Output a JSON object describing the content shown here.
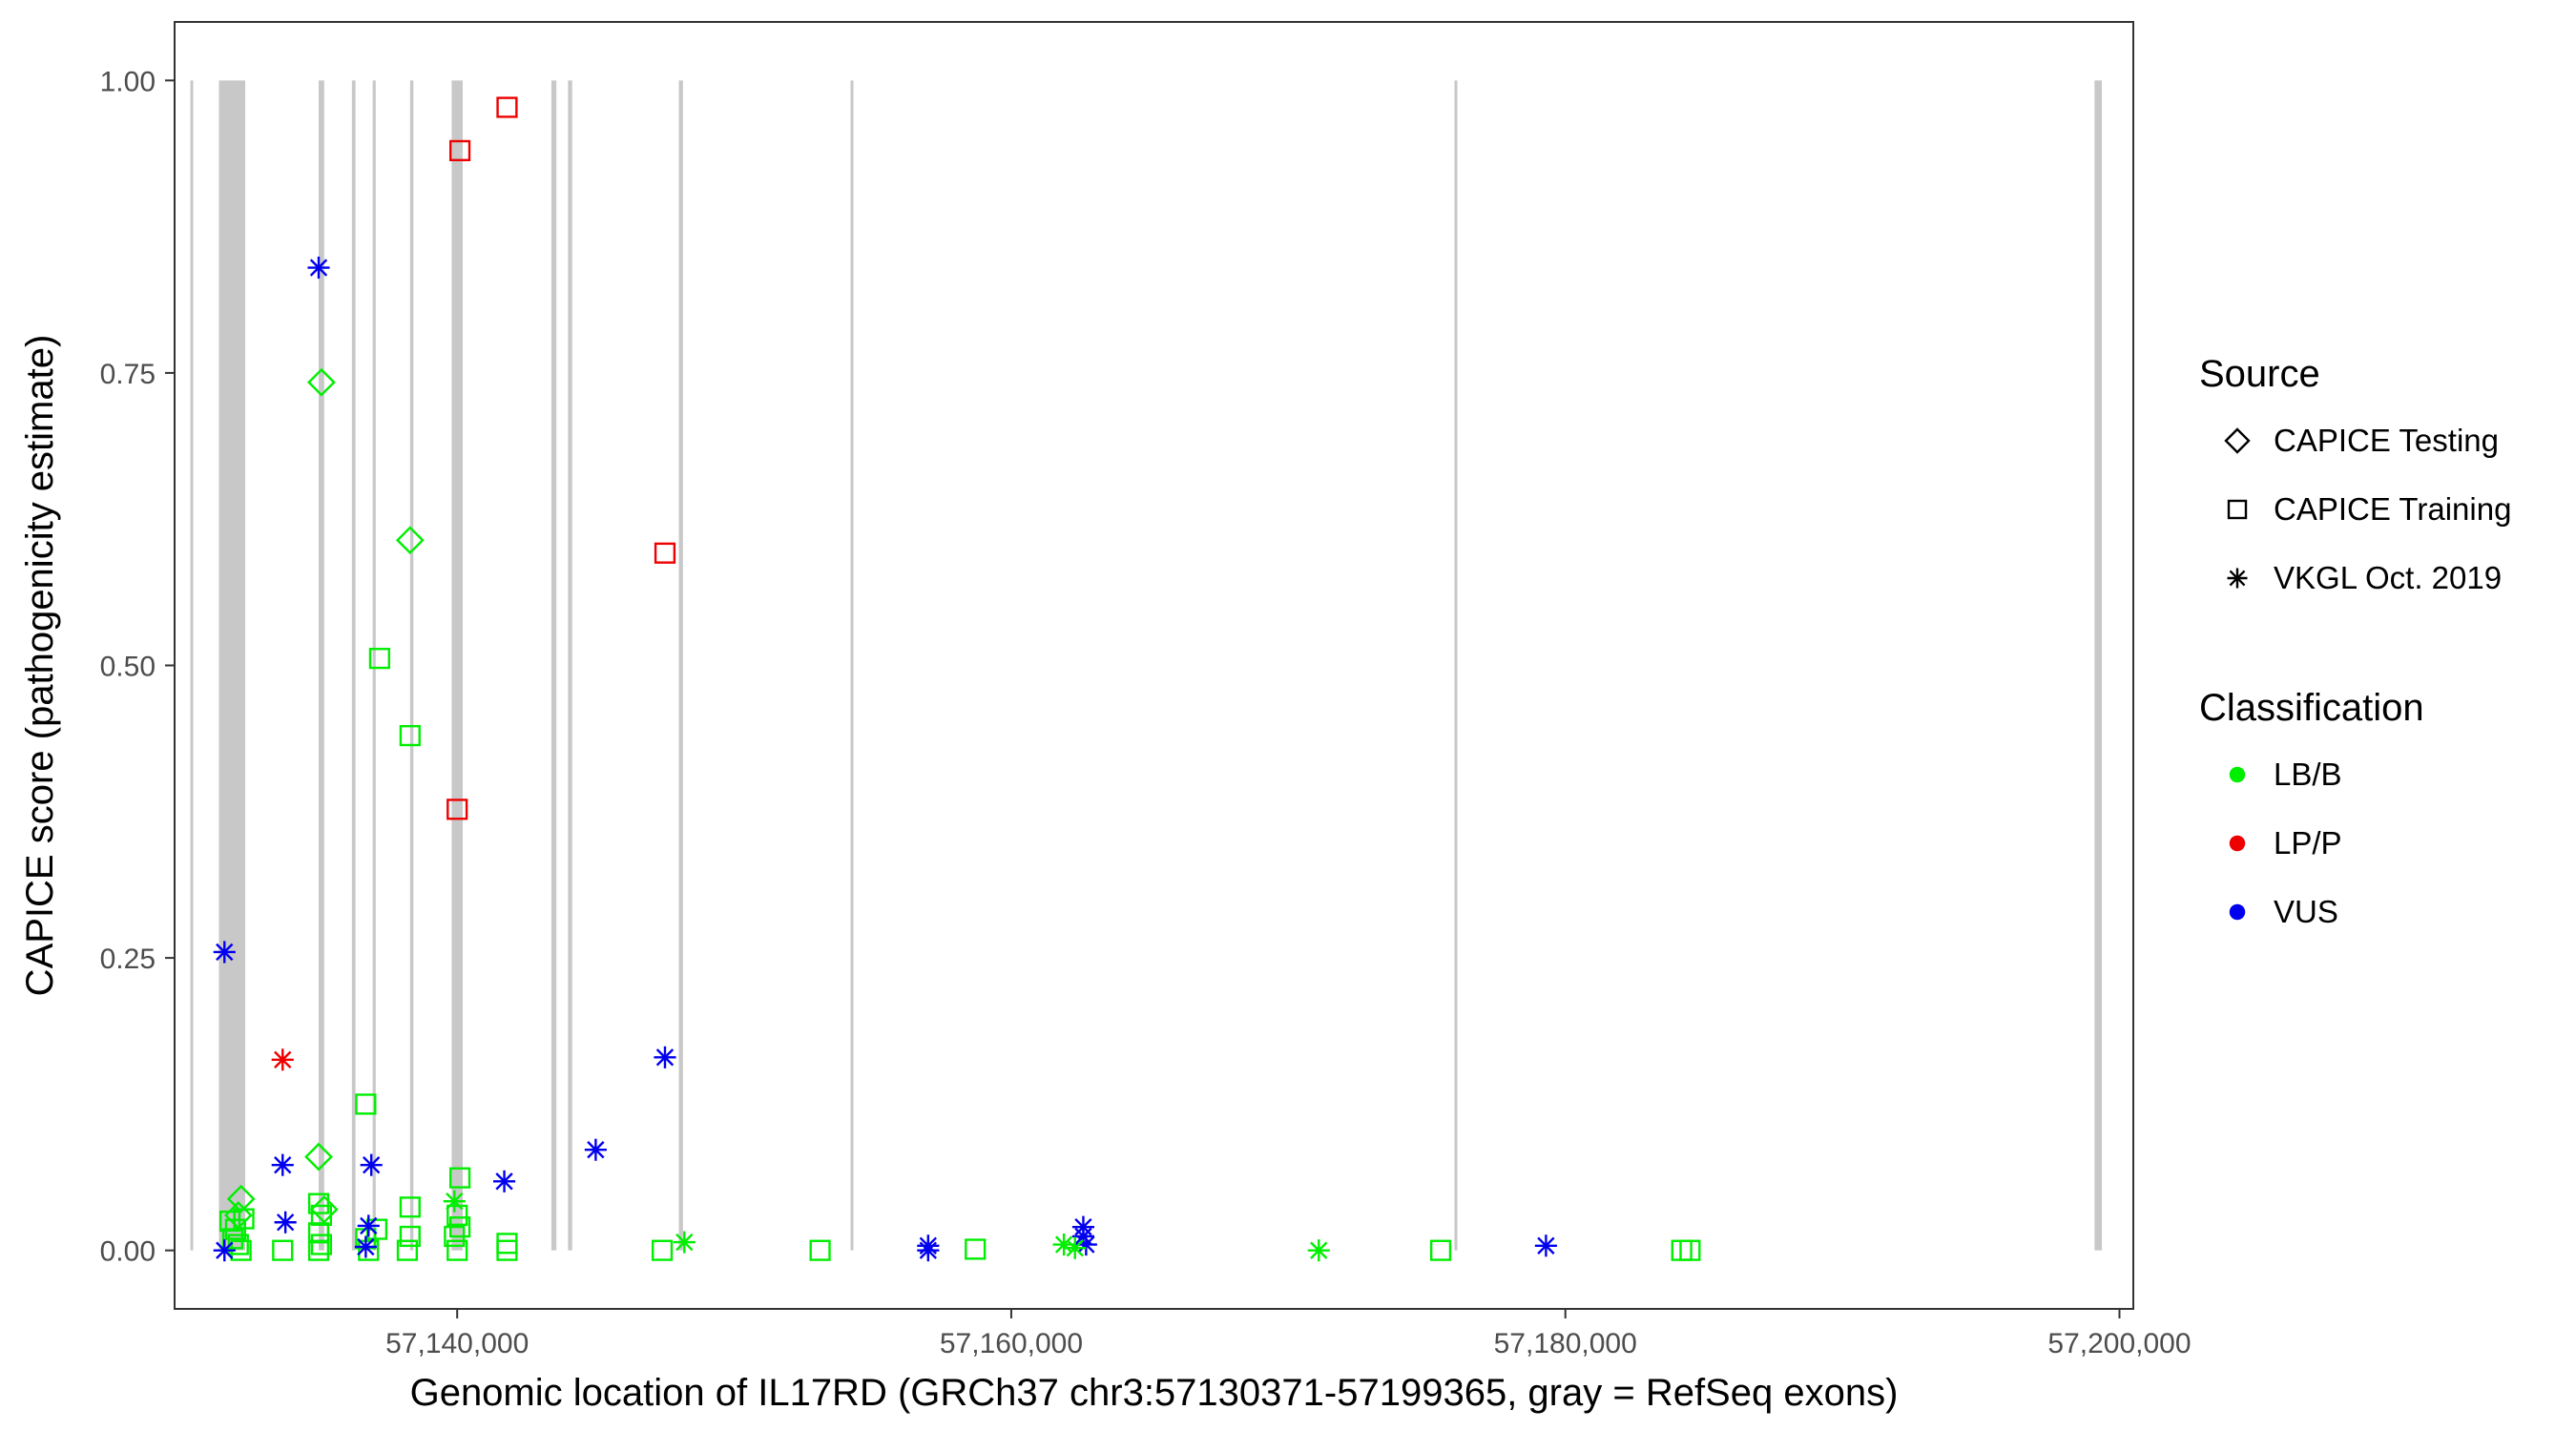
{
  "chart_data": {
    "type": "scatter",
    "title": "",
    "xlabel": "Genomic location of IL17RD (GRCh37 chr3:57130371-57199365, gray = RefSeq exons)",
    "ylabel": "CAPICE score (pathogenicity estimate)",
    "xlim": [
      57129800,
      57200500
    ],
    "ylim": [
      -0.05,
      1.05
    ],
    "x_ticks": [
      57140000,
      57160000,
      57180000,
      57200000
    ],
    "x_tick_labels": [
      "57,140,000",
      "57,160,000",
      "57,180,000",
      "57,200,000"
    ],
    "y_ticks": [
      0,
      0.25,
      0.5,
      0.75,
      1.0
    ],
    "y_tick_labels": [
      "0.00",
      "0.25",
      "0.50",
      "0.75",
      "1.00"
    ],
    "grid": false,
    "legend_position": "right",
    "exons": [
      {
        "start": 57130371,
        "end": 57130471
      },
      {
        "start": 57131400,
        "end": 57132350
      },
      {
        "start": 57135000,
        "end": 57135200
      },
      {
        "start": 57136200,
        "end": 57136330
      },
      {
        "start": 57136950,
        "end": 57137060
      },
      {
        "start": 57138300,
        "end": 57138420
      },
      {
        "start": 57139800,
        "end": 57140200
      },
      {
        "start": 57143400,
        "end": 57143580
      },
      {
        "start": 57144000,
        "end": 57144150
      },
      {
        "start": 57148000,
        "end": 57148150
      },
      {
        "start": 57154200,
        "end": 57154300
      },
      {
        "start": 57176000,
        "end": 57176100
      },
      {
        "start": 57199100,
        "end": 57199365
      }
    ],
    "legends": [
      {
        "title": "Source",
        "entries": [
          {
            "label": "CAPICE Testing",
            "shape": "diamond"
          },
          {
            "label": "CAPICE Training",
            "shape": "square"
          },
          {
            "label": "VKGL Oct. 2019",
            "shape": "asterisk"
          }
        ]
      },
      {
        "title": "Classification",
        "entries": [
          {
            "label": "LB/B",
            "color": "#00ee00"
          },
          {
            "label": "LP/P",
            "color": "#ee0000"
          },
          {
            "label": "VUS",
            "color": "#0000ee"
          }
        ]
      }
    ],
    "series": [
      {
        "name": "CAPICE Testing",
        "shape": "diamond",
        "points": [
          {
            "x": 57132200,
            "y": 0.044,
            "class": "LB/B"
          },
          {
            "x": 57132100,
            "y": 0.03,
            "class": "LB/B"
          },
          {
            "x": 57135100,
            "y": 0.742,
            "class": "LB/B"
          },
          {
            "x": 57135000,
            "y": 0.08,
            "class": "LB/B"
          },
          {
            "x": 57135200,
            "y": 0.035,
            "class": "LB/B"
          },
          {
            "x": 57138300,
            "y": 0.607,
            "class": "LB/B"
          }
        ]
      },
      {
        "name": "CAPICE Training",
        "shape": "square",
        "points": [
          {
            "x": 57141800,
            "y": 0.977,
            "class": "LP/P"
          },
          {
            "x": 57140100,
            "y": 0.94,
            "class": "LP/P"
          },
          {
            "x": 57147500,
            "y": 0.596,
            "class": "LP/P"
          },
          {
            "x": 57140000,
            "y": 0.377,
            "class": "LP/P"
          },
          {
            "x": 57137200,
            "y": 0.506,
            "class": "LB/B"
          },
          {
            "x": 57138300,
            "y": 0.44,
            "class": "LB/B"
          },
          {
            "x": 57136700,
            "y": 0.125,
            "class": "LB/B"
          },
          {
            "x": 57140100,
            "y": 0.062,
            "class": "LB/B"
          },
          {
            "x": 57138300,
            "y": 0.037,
            "class": "LB/B"
          },
          {
            "x": 57140000,
            "y": 0.03,
            "class": "LB/B"
          },
          {
            "x": 57140100,
            "y": 0.02,
            "class": "LB/B"
          },
          {
            "x": 57135000,
            "y": 0.04,
            "class": "LB/B"
          },
          {
            "x": 57135100,
            "y": 0.03,
            "class": "LB/B"
          },
          {
            "x": 57135000,
            "y": 0.015,
            "class": "LB/B"
          },
          {
            "x": 57135100,
            "y": 0.005,
            "class": "LB/B"
          },
          {
            "x": 57135000,
            "y": 0.0,
            "class": "LB/B"
          },
          {
            "x": 57131800,
            "y": 0.025,
            "class": "LB/B"
          },
          {
            "x": 57132000,
            "y": 0.018,
            "class": "LB/B"
          },
          {
            "x": 57131900,
            "y": 0.01,
            "class": "LB/B"
          },
          {
            "x": 57132100,
            "y": 0.005,
            "class": "LB/B"
          },
          {
            "x": 57132300,
            "y": 0.027,
            "class": "LB/B"
          },
          {
            "x": 57132200,
            "y": 0.0,
            "class": "LB/B"
          },
          {
            "x": 57133700,
            "y": 0.0,
            "class": "LB/B"
          },
          {
            "x": 57136700,
            "y": 0.01,
            "class": "LB/B"
          },
          {
            "x": 57137100,
            "y": 0.018,
            "class": "LB/B"
          },
          {
            "x": 57136800,
            "y": 0.0,
            "class": "LB/B"
          },
          {
            "x": 57138300,
            "y": 0.012,
            "class": "LB/B"
          },
          {
            "x": 57138200,
            "y": 0.0,
            "class": "LB/B"
          },
          {
            "x": 57139900,
            "y": 0.012,
            "class": "LB/B"
          },
          {
            "x": 57140000,
            "y": 0.0,
            "class": "LB/B"
          },
          {
            "x": 57141800,
            "y": 0.006,
            "class": "LB/B"
          },
          {
            "x": 57141800,
            "y": 0.0,
            "class": "LB/B"
          },
          {
            "x": 57147400,
            "y": 0.0,
            "class": "LB/B"
          },
          {
            "x": 57153100,
            "y": 0.0,
            "class": "LB/B"
          },
          {
            "x": 57158700,
            "y": 0.001,
            "class": "LB/B"
          },
          {
            "x": 57175500,
            "y": 0.0,
            "class": "LB/B"
          },
          {
            "x": 57184200,
            "y": 0.0,
            "class": "LB/B"
          },
          {
            "x": 57184500,
            "y": 0.0,
            "class": "LB/B"
          }
        ]
      },
      {
        "name": "VKGL Oct. 2019",
        "shape": "asterisk",
        "points": [
          {
            "x": 57135000,
            "y": 0.84,
            "class": "VUS"
          },
          {
            "x": 57131600,
            "y": 0.255,
            "class": "VUS"
          },
          {
            "x": 57147500,
            "y": 0.165,
            "class": "VUS"
          },
          {
            "x": 57145000,
            "y": 0.086,
            "class": "VUS"
          },
          {
            "x": 57133700,
            "y": 0.073,
            "class": "VUS"
          },
          {
            "x": 57136900,
            "y": 0.073,
            "class": "VUS"
          },
          {
            "x": 57141700,
            "y": 0.059,
            "class": "VUS"
          },
          {
            "x": 57133800,
            "y": 0.024,
            "class": "VUS"
          },
          {
            "x": 57136800,
            "y": 0.021,
            "class": "VUS"
          },
          {
            "x": 57136700,
            "y": 0.003,
            "class": "VUS"
          },
          {
            "x": 57131600,
            "y": 0.0,
            "class": "VUS"
          },
          {
            "x": 57157000,
            "y": 0.004,
            "class": "VUS"
          },
          {
            "x": 57157000,
            "y": 0.0,
            "class": "VUS"
          },
          {
            "x": 57162600,
            "y": 0.02,
            "class": "VUS"
          },
          {
            "x": 57162600,
            "y": 0.012,
            "class": "VUS"
          },
          {
            "x": 57162700,
            "y": 0.005,
            "class": "VUS"
          },
          {
            "x": 57179300,
            "y": 0.004,
            "class": "VUS"
          },
          {
            "x": 57133700,
            "y": 0.163,
            "class": "LP/P"
          },
          {
            "x": 57139900,
            "y": 0.042,
            "class": "LB/B"
          },
          {
            "x": 57148200,
            "y": 0.007,
            "class": "LB/B"
          },
          {
            "x": 57161900,
            "y": 0.005,
            "class": "LB/B"
          },
          {
            "x": 57162300,
            "y": 0.002,
            "class": "LB/B"
          },
          {
            "x": 57171100,
            "y": 0.0,
            "class": "LB/B"
          }
        ]
      }
    ]
  }
}
